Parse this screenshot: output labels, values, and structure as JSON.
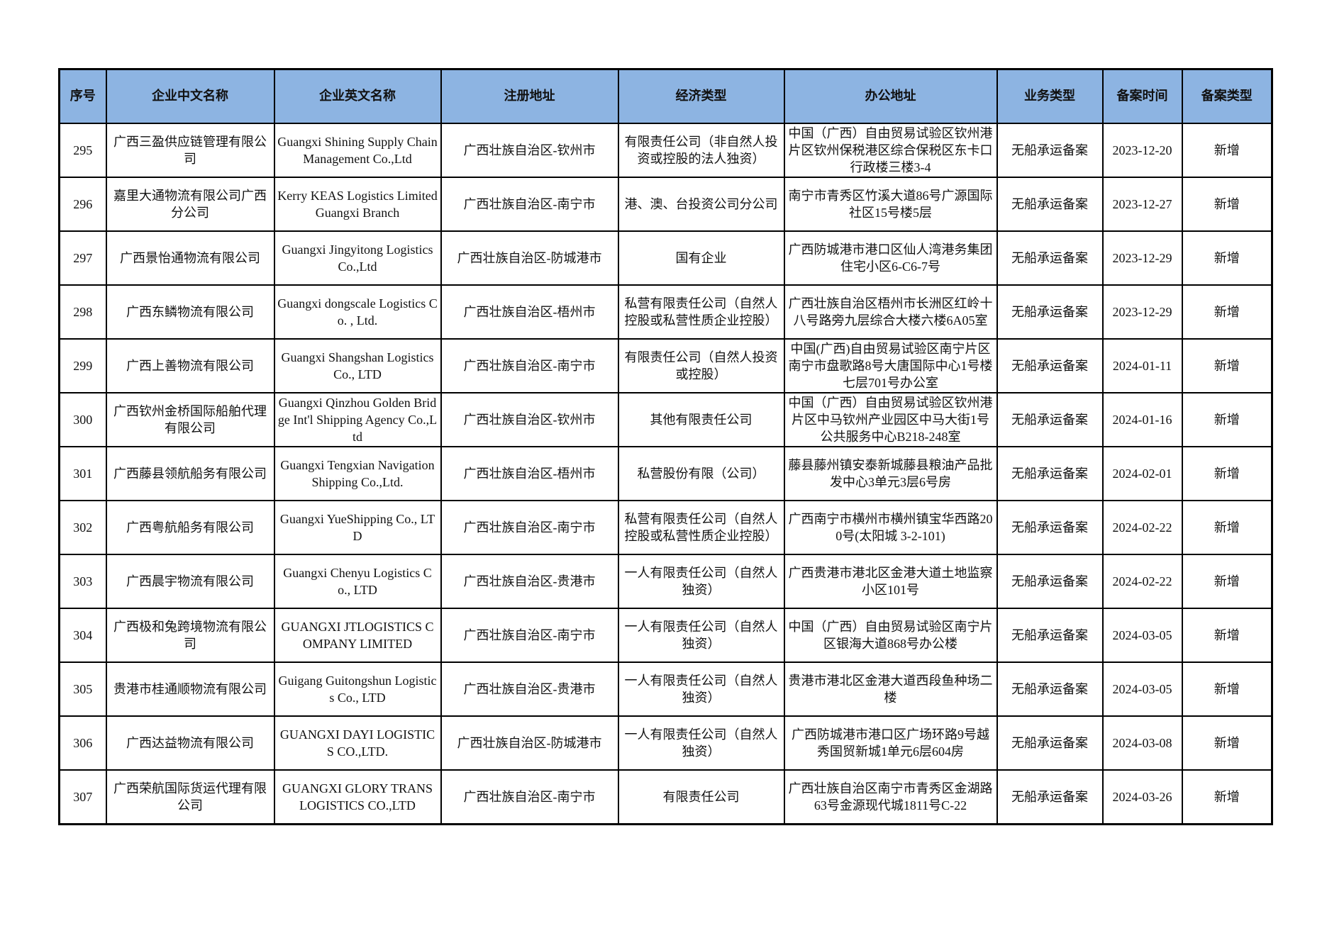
{
  "table": {
    "headers": [
      "序号",
      "企业中文名称",
      "企业英文名称",
      "注册地址",
      "经济类型",
      "办公地址",
      "业务类型",
      "备案时间",
      "备案类型"
    ],
    "rows": [
      [
        "295",
        "广西三盈供应链管理有限公司",
        "Guangxi Shining Supply Chain Management Co.,Ltd",
        "广西壮族自治区-钦州市",
        "有限责任公司（非自然人投资或控股的法人独资）",
        "中国（广西）自由贸易试验区钦州港片区钦州保税港区综合保税区东卡口行政楼三楼3-4",
        "无船承运备案",
        "2023-12-20",
        "新增"
      ],
      [
        "296",
        "嘉里大通物流有限公司广西分公司",
        "Kerry KEAS Logistics Limited Guangxi Branch",
        "广西壮族自治区-南宁市",
        "港、澳、台投资公司分公司",
        "南宁市青秀区竹溪大道86号广源国际社区15号楼5层",
        "无船承运备案",
        "2023-12-27",
        "新增"
      ],
      [
        "297",
        "广西景怡通物流有限公司",
        "Guangxi Jingyitong Logistics Co.,Ltd",
        "广西壮族自治区-防城港市",
        "国有企业",
        "广西防城港市港口区仙人湾港务集团住宅小区6-C6-7号",
        "无船承运备案",
        "2023-12-29",
        "新增"
      ],
      [
        "298",
        "广西东鳞物流有限公司",
        "Guangxi dongscale Logistics Co. , Ltd.",
        "广西壮族自治区-梧州市",
        "私营有限责任公司（自然人控股或私营性质企业控股）",
        "广西壮族自治区梧州市长洲区红岭十八号路旁九层综合大楼六楼6A05室",
        "无船承运备案",
        "2023-12-29",
        "新增"
      ],
      [
        "299",
        "广西上善物流有限公司",
        "Guangxi Shangshan Logistics Co., LTD",
        "广西壮族自治区-南宁市",
        "有限责任公司（自然人投资或控股）",
        "中国(广西)自由贸易试验区南宁片区南宁市盘歌路8号大唐国际中心1号楼七层701号办公室",
        "无船承运备案",
        "2024-01-11",
        "新增"
      ],
      [
        "300",
        "广西钦州金桥国际船舶代理有限公司",
        "Guangxi Qinzhou Golden Bridge Int'l Shipping Agency Co.,Ltd",
        "广西壮族自治区-钦州市",
        "其他有限责任公司",
        "中国（广西）自由贸易试验区钦州港片区中马钦州产业园区中马大街1号公共服务中心B218-248室",
        "无船承运备案",
        "2024-01-16",
        "新增"
      ],
      [
        "301",
        "广西藤县领航船务有限公司",
        "Guangxi Tengxian Navigation Shipping Co.,Ltd.",
        "广西壮族自治区-梧州市",
        "私营股份有限（公司）",
        "藤县藤州镇安泰新城藤县粮油产品批发中心3单元3层6号房",
        "无船承运备案",
        "2024-02-01",
        "新增"
      ],
      [
        "302",
        "广西粤航船务有限公司",
        "Guangxi YueShipping Co., LTD",
        "广西壮族自治区-南宁市",
        "私营有限责任公司（自然人控股或私营性质企业控股）",
        "广西南宁市横州市横州镇宝华西路200号(太阳城 3-2-101)",
        "无船承运备案",
        "2024-02-22",
        "新增"
      ],
      [
        "303",
        "广西晨宇物流有限公司",
        "Guangxi Chenyu Logistics Co., LTD",
        "广西壮族自治区-贵港市",
        "一人有限责任公司（自然人独资）",
        "广西贵港市港北区金港大道土地监察小区101号",
        "无船承运备案",
        "2024-02-22",
        "新增"
      ],
      [
        "304",
        "广西极和兔跨境物流有限公司",
        "GUANGXI JTLOGISTICS COMPANY LIMITED",
        "广西壮族自治区-南宁市",
        "一人有限责任公司（自然人独资）",
        "中国（广西）自由贸易试验区南宁片区银海大道868号办公楼",
        "无船承运备案",
        "2024-03-05",
        "新增"
      ],
      [
        "305",
        "贵港市桂通顺物流有限公司",
        "Guigang Guitongshun Logistics Co., LTD",
        "广西壮族自治区-贵港市",
        "一人有限责任公司（自然人独资）",
        "贵港市港北区金港大道西段鱼种场二楼",
        "无船承运备案",
        "2024-03-05",
        "新增"
      ],
      [
        "306",
        "广西达益物流有限公司",
        "GUANGXI DAYI LOGISTICS CO.,LTD.",
        "广西壮族自治区-防城港市",
        "一人有限责任公司（自然人独资）",
        "广西防城港市港口区广场环路9号越秀国贸新城1单元6层604房",
        "无船承运备案",
        "2024-03-08",
        "新增"
      ],
      [
        "307",
        "广西荣航国际货运代理有限公司",
        "GUANGXI GLORY TRANS LOGISTICS CO.,LTD",
        "广西壮族自治区-南宁市",
        "有限责任公司",
        "广西壮族自治区南宁市青秀区金湖路63号金源现代城1811号C-22",
        "无船承运备案",
        "2024-03-26",
        "新增"
      ]
    ]
  },
  "colors": {
    "header_bg": "#8db4e2",
    "border": "#000000"
  }
}
